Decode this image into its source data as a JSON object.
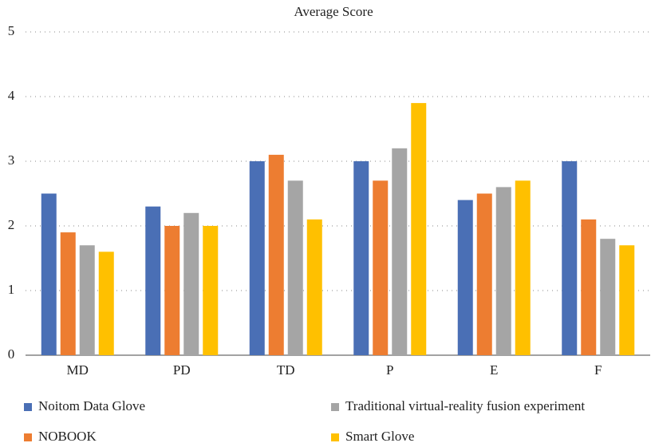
{
  "chart_data": {
    "type": "bar",
    "title": "Average Score",
    "categories": [
      "MD",
      "PD",
      "TD",
      "P",
      "E",
      "F"
    ],
    "series": [
      {
        "name": "Noitom Data Glove",
        "color": "#4a6fb5",
        "values": [
          2.5,
          2.3,
          3.0,
          3.0,
          2.4,
          3.0
        ]
      },
      {
        "name": "NOBOOK",
        "color": "#ed7d31",
        "values": [
          1.9,
          2.0,
          3.1,
          2.7,
          2.5,
          2.1
        ]
      },
      {
        "name": "Traditional virtual-reality fusion experiment",
        "color": "#a5a5a5",
        "values": [
          1.7,
          2.2,
          2.7,
          3.2,
          2.6,
          1.8
        ]
      },
      {
        "name": "Smart Glove",
        "color": "#ffc000",
        "values": [
          1.6,
          2.0,
          2.1,
          3.9,
          2.7,
          1.7
        ]
      }
    ],
    "ylim": [
      0,
      5
    ],
    "yticks": [
      0,
      1,
      2,
      3,
      4,
      5
    ],
    "grid": true,
    "legend": "bottom"
  }
}
